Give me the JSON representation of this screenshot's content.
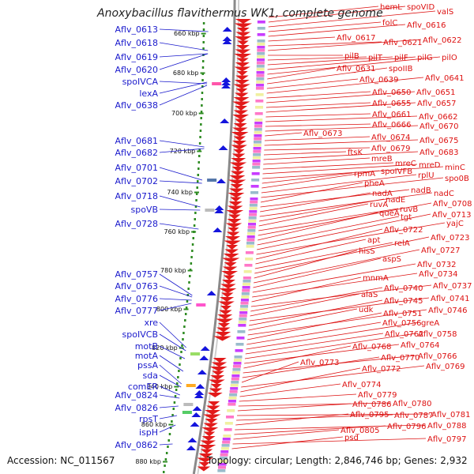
{
  "title": "Anoxybacillus flavithermus WK1, complete genome",
  "footer": {
    "accession": "Accession: NC_011567",
    "topology": "Topology: circular; Length: 2,846,746 bp; Genes: 2,932"
  },
  "colors": {
    "left_label": "#1a1acc",
    "right_label": "#dd1111",
    "scale_dot": "#2e8b22",
    "arrow_blue": "#1515dd",
    "arrow_red": "#e21a1a",
    "backbone": "#8a8a8a"
  },
  "scale_ticks": [
    "660 kbp",
    "680 kbp",
    "700 kbp",
    "720 kbp",
    "740 kbp",
    "760 kbp",
    "780 kbp",
    "800 kbp",
    "820 kbp",
    "840 kbp",
    "860 kbp",
    "880 kbp"
  ],
  "left_genes": [
    "Aflv_0613",
    "Aflv_0618",
    "Aflv_0619",
    "Aflv_0620",
    "spoIVCA",
    "lexA",
    "Aflv_0638",
    "Aflv_0681",
    "Aflv_0682",
    "Aflv_0701",
    "Aflv_0702",
    "Aflv_0718",
    "spoVB",
    "Aflv_0728",
    "Aflv_0757",
    "Aflv_0763",
    "Aflv_0776",
    "Aflv_0777",
    "xre",
    "spoIVCB",
    "motB",
    "motA",
    "pssA",
    "sda",
    "comER",
    "Aflv_0824",
    "Aflv_0826",
    "rpsT",
    "ispH",
    "Aflv_0862"
  ],
  "right_genes": [
    "hemL",
    "spoVID",
    "valS",
    "folC",
    "Aflv_0616",
    "Aflv_0617",
    "Aflv_0621",
    "Aflv_0622",
    "pilB",
    "pilT",
    "pilF",
    "pilG",
    "pilO",
    "Aflv_0631",
    "spoIIB",
    "Aflv_0639",
    "Aflv_0641",
    "Aflv_0650",
    "Aflv_0651",
    "Aflv_0655",
    "Aflv_0657",
    "Aflv_0661",
    "Aflv_0662",
    "Aflv_0666",
    "Aflv_0670",
    "Aflv_0673",
    "Aflv_0674",
    "Aflv_0675",
    "Aflv_0679",
    "ftsK",
    "Aflv_0683",
    "mreB",
    "mreC",
    "mreD",
    "minC",
    "rpmA",
    "spoIVFB",
    "rplU",
    "spo0B",
    "pheA",
    "nadB",
    "nadA",
    "nadC",
    "nadE",
    "ruvA",
    "ruvB",
    "Aflv_0708",
    "queA",
    "tgt",
    "Aflv_0713",
    "yajC",
    "Aflv_0722",
    "apt",
    "relA",
    "Aflv_0723",
    "hisS",
    "Aflv_0727",
    "aspS",
    "Aflv_0732",
    "Aflv_0734",
    "mnmA",
    "Aflv_0737",
    "Aflv_0740",
    "alaS",
    "Aflv_0741",
    "Aflv_0745",
    "udk",
    "Aflv_0746",
    "Aflv_0751",
    "Aflv_0756",
    "greA",
    "Aflv_0762",
    "Aflv_0758",
    "Aflv_0764",
    "Aflv_0768",
    "Aflv_0766",
    "Aflv_0770",
    "Aflv_0773",
    "Aflv_0769",
    "Aflv_0772",
    "Aflv_0774",
    "Aflv_0779",
    "Aflv_0780",
    "Aflv_0786",
    "Aflv_0781",
    "Aflv_0787",
    "Aflv_0795",
    "Aflv_0788",
    "Aflv_0796",
    "Aflv_0805",
    "Aflv_0797",
    "psd"
  ]
}
